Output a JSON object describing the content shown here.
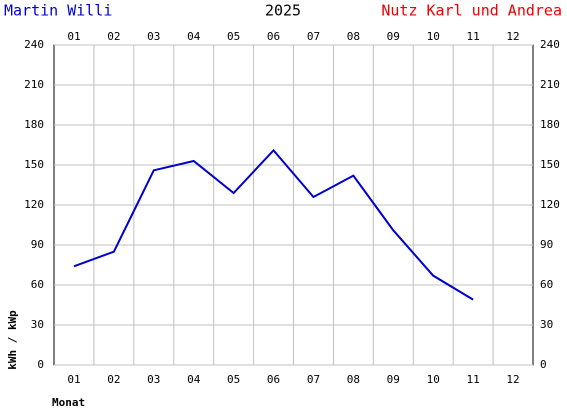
{
  "chart_data": {
    "type": "line",
    "title": "2025",
    "header_left": "Martin Willi",
    "header_right": "Nutz Karl und Andrea",
    "y_label": "kWh / kWp",
    "x_label": "Monat",
    "categories": [
      "01",
      "02",
      "03",
      "04",
      "05",
      "06",
      "07",
      "08",
      "09",
      "10",
      "11",
      "12"
    ],
    "values": [
      74,
      85,
      146,
      153,
      129,
      161,
      126,
      142,
      101,
      67,
      49,
      null
    ],
    "color": "#0000cc",
    "ylim": [
      0,
      240
    ],
    "yticks": [
      0,
      30,
      60,
      90,
      120,
      150,
      180,
      210,
      240
    ],
    "grid": true
  }
}
